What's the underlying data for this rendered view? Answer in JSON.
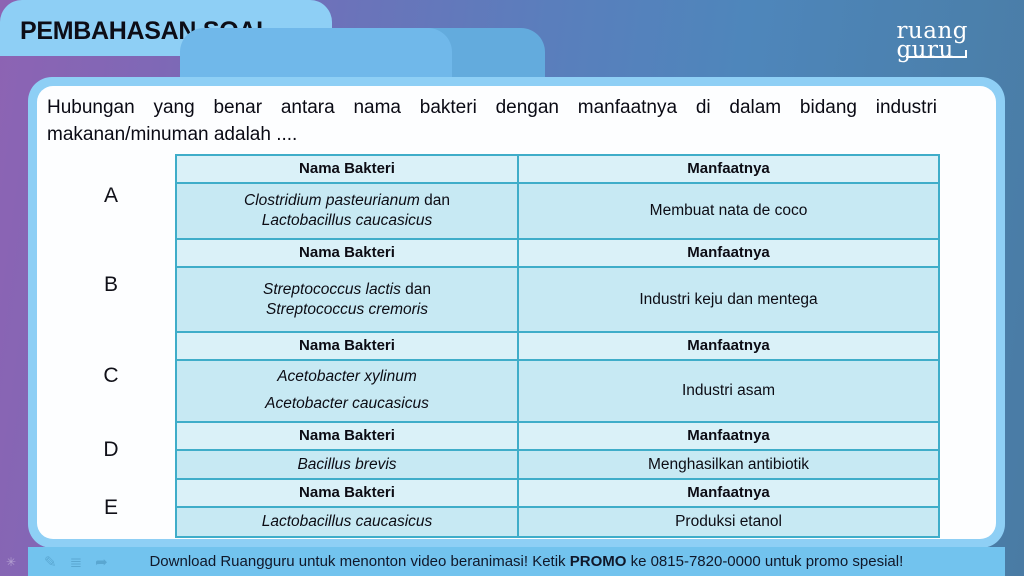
{
  "header": {
    "title": "PEMBAHASAN SOAL"
  },
  "logo": {
    "line1": "ruang",
    "line2": "guru"
  },
  "question": {
    "line1": "Hubungan yang benar antara nama bakteri dengan manfaatnya di dalam bidang industri",
    "line2": "makanan/minuman adalah ...."
  },
  "table": {
    "col1_header": "Nama Bakteri",
    "col2_header": "Manfaatnya",
    "options": [
      {
        "label": "A",
        "nama": [
          [
            [
              "Clostridium pasteurianum",
              true
            ],
            [
              " dan",
              false
            ]
          ],
          [
            [
              "Lactobacillus caucasicus",
              true
            ]
          ]
        ],
        "manfaat": "Membuat nata de coco"
      },
      {
        "label": "B",
        "nama": [
          [
            [
              "Streptococcus lactis",
              true
            ],
            [
              " dan",
              false
            ]
          ],
          [
            [
              "Streptococcus cremoris",
              true
            ]
          ]
        ],
        "manfaat": "Industri keju dan mentega"
      },
      {
        "label": "C",
        "nama": [
          [
            [
              "Acetobacter xylinum",
              true
            ]
          ],
          [
            [
              "Acetobacter caucasicus",
              true
            ]
          ]
        ],
        "manfaat": "Industri asam"
      },
      {
        "label": "D",
        "nama": [
          [
            [
              "Bacillus brevis",
              true
            ]
          ]
        ],
        "manfaat": "Menghasilkan antibiotik"
      },
      {
        "label": "E",
        "nama": [
          [
            [
              "Lactobacillus caucasicus",
              true
            ]
          ]
        ],
        "manfaat": "Produksi etanol"
      }
    ]
  },
  "footer": {
    "text_before": "Download Ruangguru untuk menonton video beranimasi! Ketik ",
    "promo": "PROMO",
    "text_after": " ke 0815-7820-0000 untuk promo spesial!"
  },
  "icons": {
    "pencil": "✎",
    "list": "≣",
    "arrow": "➦",
    "sparkle": "✳"
  },
  "colors": {
    "background_purple": "#8d63b3",
    "background_blue": "#4e86bb",
    "tab_light": "#8ecff5",
    "tab_mid": "#70b8ea",
    "tab_dark": "#63abdd",
    "card_border": "#8ecff5",
    "table_border": "#3fadc9",
    "table_header_bg": "#daf1f8",
    "table_cell_bg": "#c7e9f3",
    "footer_bar": "#72c3ee"
  }
}
